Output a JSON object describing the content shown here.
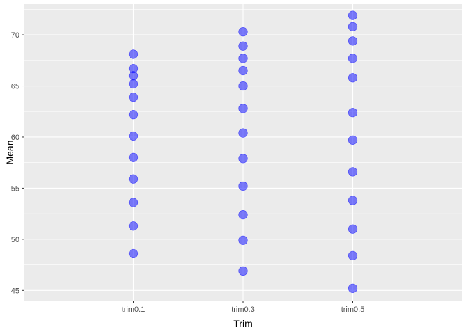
{
  "chart_data": {
    "type": "scatter",
    "xlabel": "Trim",
    "ylabel": "Mean",
    "categories": [
      "trim0.1",
      "trim0.3",
      "trim0.5"
    ],
    "ylim": [
      44,
      73
    ],
    "yticks": [
      45,
      50,
      55,
      60,
      65,
      70
    ],
    "grid": true,
    "legend": "none",
    "points": [
      {
        "x": "trim0.1",
        "y": [
          48.6,
          51.3,
          53.6,
          55.9,
          58.0,
          60.1,
          62.2,
          63.9,
          65.2,
          66.0,
          66.7,
          68.1
        ]
      },
      {
        "x": "trim0.3",
        "y": [
          46.9,
          49.9,
          52.4,
          55.2,
          57.9,
          60.4,
          62.8,
          65.0,
          66.5,
          67.7,
          68.9,
          70.3
        ]
      },
      {
        "x": "trim0.5",
        "y": [
          45.2,
          48.4,
          51.0,
          53.8,
          56.6,
          59.7,
          62.4,
          65.8,
          67.7,
          69.4,
          70.8,
          71.9
        ]
      }
    ],
    "colors": {
      "panel_bg": "#EBEBEB",
      "grid": "#FFFFFF",
      "point_fill": "#0000FF",
      "point_opacity": 0.5,
      "point_stroke": "#0000FF"
    }
  }
}
